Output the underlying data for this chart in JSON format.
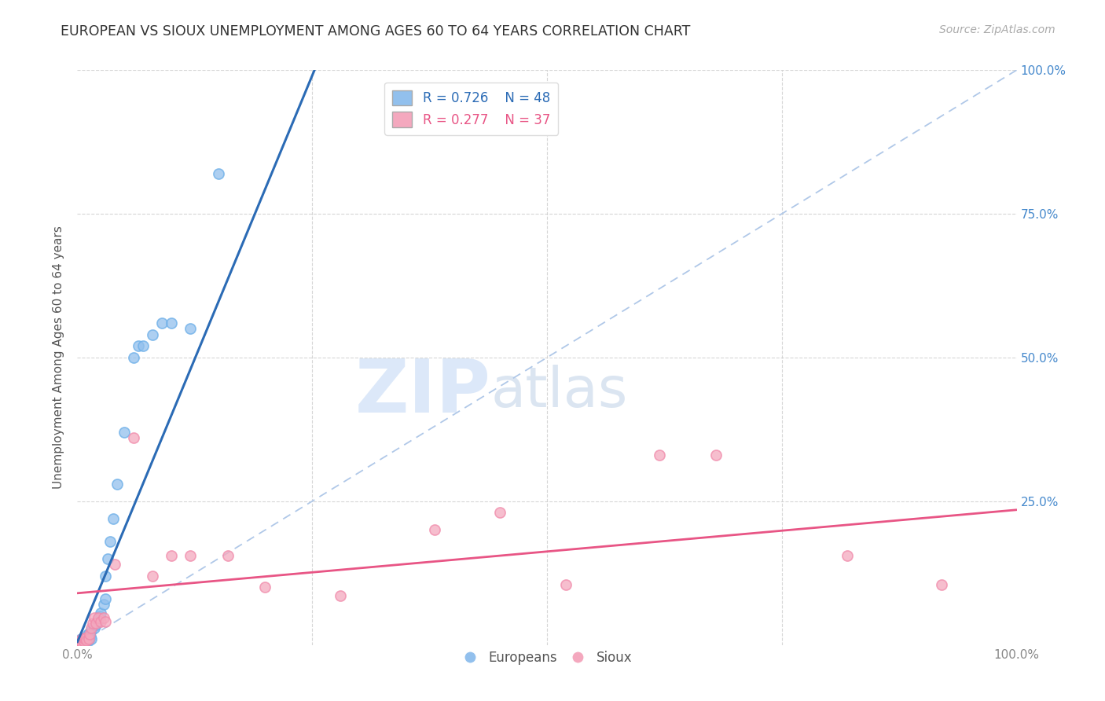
{
  "title": "EUROPEAN VS SIOUX UNEMPLOYMENT AMONG AGES 60 TO 64 YEARS CORRELATION CHART",
  "source": "Source: ZipAtlas.com",
  "ylabel": "Unemployment Among Ages 60 to 64 years",
  "xlim": [
    0.0,
    1.0
  ],
  "ylim": [
    0.0,
    1.0
  ],
  "yticks": [
    0.0,
    0.25,
    0.5,
    0.75,
    1.0
  ],
  "ytick_labels_right": [
    "",
    "25.0%",
    "50.0%",
    "75.0%",
    "100.0%"
  ],
  "xtick_positions": [
    0.0,
    0.25,
    0.5,
    0.75,
    1.0
  ],
  "xtick_labels": [
    "0.0%",
    "",
    "",
    "",
    "100.0%"
  ],
  "legend_labels": [
    "Europeans",
    "Sioux"
  ],
  "european_color": "#92c0ed",
  "sioux_color": "#f4a8be",
  "european_edge_color": "#6aaee8",
  "sioux_edge_color": "#f08aaa",
  "european_line_color": "#2b6bb5",
  "sioux_line_color": "#e85585",
  "diagonal_color": "#b0c8e8",
  "watermark_zip": "ZIP",
  "watermark_atlas": "atlas",
  "R_european": 0.726,
  "N_european": 48,
  "R_sioux": 0.277,
  "N_sioux": 37,
  "eu_line_x0": 0.0,
  "eu_line_y0": 0.005,
  "eu_line_x1": 0.255,
  "eu_line_y1": 1.01,
  "si_line_x0": 0.0,
  "si_line_y0": 0.09,
  "si_line_x1": 1.0,
  "si_line_y1": 0.235,
  "european_scatter_x": [
    0.002,
    0.003,
    0.003,
    0.004,
    0.004,
    0.005,
    0.005,
    0.006,
    0.006,
    0.006,
    0.007,
    0.007,
    0.007,
    0.008,
    0.008,
    0.009,
    0.009,
    0.01,
    0.01,
    0.011,
    0.011,
    0.012,
    0.012,
    0.013,
    0.014,
    0.015,
    0.015,
    0.018,
    0.02,
    0.021,
    0.024,
    0.025,
    0.028,
    0.03,
    0.03,
    0.032,
    0.035,
    0.038,
    0.042,
    0.05,
    0.06,
    0.065,
    0.07,
    0.08,
    0.09,
    0.1,
    0.12,
    0.15
  ],
  "european_scatter_y": [
    0.005,
    0.005,
    0.008,
    0.006,
    0.01,
    0.005,
    0.008,
    0.005,
    0.008,
    0.01,
    0.005,
    0.008,
    0.012,
    0.006,
    0.01,
    0.006,
    0.012,
    0.008,
    0.015,
    0.01,
    0.018,
    0.008,
    0.02,
    0.012,
    0.015,
    0.01,
    0.025,
    0.03,
    0.035,
    0.04,
    0.05,
    0.055,
    0.07,
    0.08,
    0.12,
    0.15,
    0.18,
    0.22,
    0.28,
    0.37,
    0.5,
    0.52,
    0.52,
    0.54,
    0.56,
    0.56,
    0.55,
    0.82
  ],
  "sioux_scatter_x": [
    0.002,
    0.003,
    0.003,
    0.004,
    0.005,
    0.005,
    0.006,
    0.007,
    0.007,
    0.008,
    0.009,
    0.01,
    0.012,
    0.013,
    0.015,
    0.016,
    0.018,
    0.02,
    0.022,
    0.025,
    0.028,
    0.03,
    0.04,
    0.06,
    0.08,
    0.1,
    0.12,
    0.16,
    0.2,
    0.28,
    0.38,
    0.45,
    0.52,
    0.62,
    0.68,
    0.82,
    0.92
  ],
  "sioux_scatter_y": [
    0.005,
    0.005,
    0.008,
    0.006,
    0.005,
    0.01,
    0.008,
    0.006,
    0.012,
    0.01,
    0.012,
    0.008,
    0.01,
    0.018,
    0.03,
    0.038,
    0.048,
    0.038,
    0.048,
    0.04,
    0.048,
    0.04,
    0.14,
    0.36,
    0.12,
    0.155,
    0.155,
    0.155,
    0.1,
    0.085,
    0.2,
    0.23,
    0.105,
    0.33,
    0.33,
    0.155,
    0.105
  ]
}
